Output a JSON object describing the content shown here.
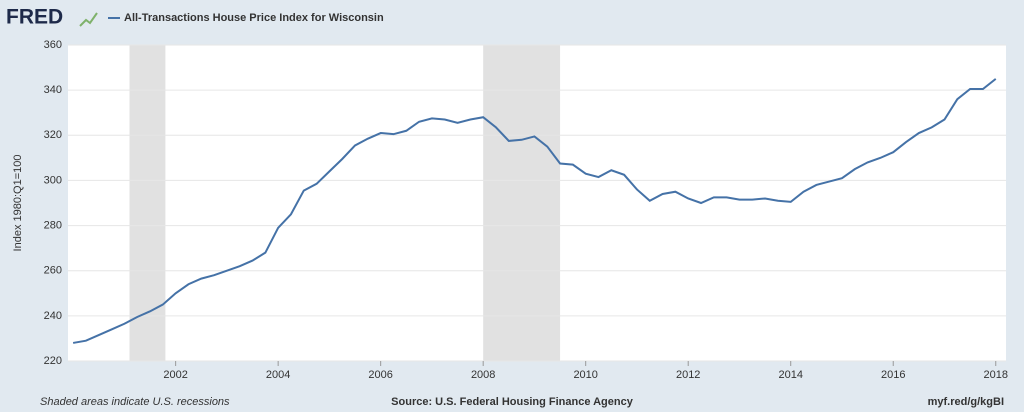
{
  "logo": "FRED",
  "chart_data": {
    "type": "line",
    "title": "All-Transactions House Price Index for Wisconsin",
    "y_label": "Index 1980:Q1=100",
    "footer_left": "Shaded areas indicate U.S. recessions",
    "footer_center": "Source: U.S. Federal Housing Finance Agency",
    "footer_right": "myf.red/g/kgBI",
    "xlim": [
      1999.9,
      2018.2
    ],
    "xticks": [
      2002,
      2004,
      2006,
      2008,
      2010,
      2012,
      2014,
      2016,
      2018
    ],
    "ylim": [
      220,
      360
    ],
    "yticks": [
      220,
      240,
      260,
      280,
      300,
      320,
      340,
      360
    ],
    "grid": true,
    "recessions": [
      [
        2001.1,
        2001.8
      ],
      [
        2008.0,
        2009.5
      ]
    ],
    "x": [
      2000,
      2000.25,
      2000.5,
      2000.75,
      2001,
      2001.25,
      2001.5,
      2001.75,
      2002,
      2002.25,
      2002.5,
      2002.75,
      2003,
      2003.25,
      2003.5,
      2003.75,
      2004,
      2004.25,
      2004.5,
      2004.75,
      2005,
      2005.25,
      2005.5,
      2005.75,
      2006,
      2006.25,
      2006.5,
      2006.75,
      2007,
      2007.25,
      2007.5,
      2007.75,
      2008,
      2008.25,
      2008.5,
      2008.75,
      2009,
      2009.25,
      2009.5,
      2009.75,
      2010,
      2010.25,
      2010.5,
      2010.75,
      2011,
      2011.25,
      2011.5,
      2011.75,
      2012,
      2012.25,
      2012.5,
      2012.75,
      2013,
      2013.25,
      2013.5,
      2013.75,
      2014,
      2014.25,
      2014.5,
      2014.75,
      2015,
      2015.25,
      2015.5,
      2015.75,
      2016,
      2016.25,
      2016.5,
      2016.75,
      2017,
      2017.25,
      2017.5,
      2017.75,
      2018
    ],
    "series": [
      {
        "name": "All-Transactions House Price Index for Wisconsin",
        "color": "#4572a7",
        "values": [
          228,
          229,
          231.5,
          234,
          236.5,
          239.5,
          242,
          245,
          250,
          254,
          256.5,
          258,
          260,
          262,
          264.5,
          268,
          279,
          285,
          295.5,
          298.5,
          304,
          309.5,
          315.5,
          318.5,
          321,
          320.5,
          322,
          326,
          327.5,
          327,
          325.5,
          327,
          328,
          323.5,
          317.5,
          318,
          319.5,
          315,
          307.5,
          307,
          303,
          301.5,
          304.5,
          302.5,
          296,
          291,
          294,
          295,
          292,
          290,
          292.5,
          292.5,
          291.5,
          291.5,
          292,
          291,
          290.5,
          295,
          298,
          299.5,
          301,
          305,
          308,
          310,
          312.5,
          317,
          321,
          323.5,
          327,
          336,
          340.5,
          340.5,
          345
        ]
      }
    ]
  }
}
